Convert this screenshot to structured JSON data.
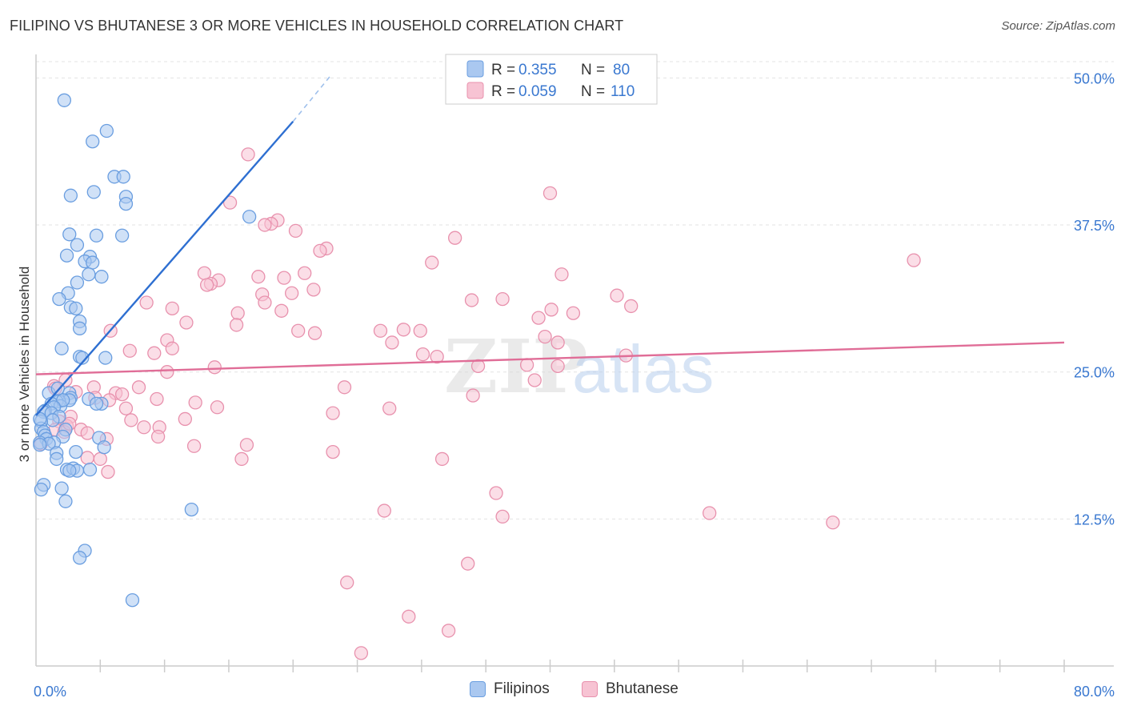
{
  "title": "FILIPINO VS BHUTANESE 3 OR MORE VEHICLES IN HOUSEHOLD CORRELATION CHART",
  "source": "Source: ZipAtlas.com",
  "watermark": {
    "zip": "ZIP",
    "atlas": "atlas"
  },
  "legend_top": [
    {
      "r_label": "R =",
      "r_value": "0.355",
      "n_label": "N =",
      "n_value": "80"
    },
    {
      "r_label": "R =",
      "r_value": "0.059",
      "n_label": "N =",
      "n_value": "110"
    }
  ],
  "chart_data": {
    "type": "scatter",
    "title": "FILIPINO VS BHUTANESE 3 OR MORE VEHICLES IN HOUSEHOLD CORRELATION CHART",
    "xlabel": "",
    "ylabel": "3 or more Vehicles in Household",
    "xlim": [
      0,
      80
    ],
    "ylim": [
      0,
      52
    ],
    "x_tick_labels": [
      "0.0%",
      "80.0%"
    ],
    "y_ticks": [
      12.5,
      25.0,
      37.5,
      50.0
    ],
    "y_tick_labels": [
      "12.5%",
      "25.0%",
      "37.5%",
      "50.0%"
    ],
    "grid": true,
    "legend_position": "top-center",
    "series": [
      {
        "name": "Filipinos",
        "color": "#6a9ee0",
        "fill": "#aac8f0",
        "line_color": "#2e6fd1",
        "r": 0.355,
        "n": 80,
        "trend": {
          "x0": 0,
          "y0": 21.3,
          "x1": 20,
          "y1": 46.3,
          "dash_x1": 23,
          "dash_y1": 50.3
        },
        "points": [
          [
            2.2,
            48.1
          ],
          [
            4.4,
            44.6
          ],
          [
            5.5,
            45.5
          ],
          [
            6.1,
            41.6
          ],
          [
            6.8,
            41.6
          ],
          [
            2.7,
            40.0
          ],
          [
            4.5,
            40.3
          ],
          [
            7.0,
            39.9
          ],
          [
            7.0,
            39.3
          ],
          [
            16.6,
            38.2
          ],
          [
            2.6,
            36.7
          ],
          [
            4.7,
            36.6
          ],
          [
            6.7,
            36.6
          ],
          [
            3.2,
            35.8
          ],
          [
            2.4,
            34.9
          ],
          [
            4.2,
            34.8
          ],
          [
            3.8,
            34.4
          ],
          [
            4.4,
            34.3
          ],
          [
            4.1,
            33.3
          ],
          [
            5.1,
            33.1
          ],
          [
            3.2,
            32.6
          ],
          [
            2.5,
            31.7
          ],
          [
            1.8,
            31.2
          ],
          [
            2.7,
            30.5
          ],
          [
            3.1,
            30.4
          ],
          [
            3.4,
            29.3
          ],
          [
            3.4,
            28.7
          ],
          [
            2.0,
            27.0
          ],
          [
            3.4,
            26.3
          ],
          [
            3.6,
            26.2
          ],
          [
            5.4,
            26.2
          ],
          [
            1.0,
            23.2
          ],
          [
            2.6,
            23.2
          ],
          [
            2.7,
            22.8
          ],
          [
            2.6,
            22.6
          ],
          [
            1.8,
            22.5
          ],
          [
            1.6,
            22.5
          ],
          [
            1.2,
            22.3
          ],
          [
            1.9,
            22.1
          ],
          [
            2.1,
            22.6
          ],
          [
            1.4,
            22.0
          ],
          [
            0.7,
            21.7
          ],
          [
            4.1,
            22.7
          ],
          [
            5.1,
            22.3
          ],
          [
            4.7,
            22.3
          ],
          [
            0.6,
            21.6
          ],
          [
            1.2,
            21.5
          ],
          [
            1.8,
            21.2
          ],
          [
            1.3,
            20.9
          ],
          [
            0.4,
            20.8
          ],
          [
            0.4,
            20.2
          ],
          [
            2.3,
            20.1
          ],
          [
            0.6,
            19.9
          ],
          [
            0.7,
            19.6
          ],
          [
            2.1,
            19.5
          ],
          [
            4.9,
            19.4
          ],
          [
            0.8,
            19.3
          ],
          [
            1.4,
            19.0
          ],
          [
            0.3,
            19.0
          ],
          [
            1.0,
            18.9
          ],
          [
            0.3,
            18.8
          ],
          [
            5.3,
            18.6
          ],
          [
            3.1,
            18.2
          ],
          [
            1.6,
            18.1
          ],
          [
            1.6,
            17.6
          ],
          [
            2.4,
            16.7
          ],
          [
            2.9,
            16.8
          ],
          [
            3.2,
            16.6
          ],
          [
            4.2,
            16.7
          ],
          [
            2.6,
            16.6
          ],
          [
            0.6,
            15.4
          ],
          [
            0.4,
            15.0
          ],
          [
            2.0,
            15.1
          ],
          [
            2.3,
            14.0
          ],
          [
            12.1,
            13.3
          ],
          [
            3.8,
            9.8
          ],
          [
            3.4,
            9.2
          ],
          [
            7.5,
            5.6
          ],
          [
            0.3,
            21.0
          ],
          [
            1.7,
            23.6
          ]
        ]
      },
      {
        "name": "Bhutanese",
        "color": "#e891ad",
        "fill": "#f7c3d3",
        "line_color": "#e06d97",
        "r": 0.059,
        "n": 110,
        "trend": {
          "x0": 0,
          "y0": 24.8,
          "x1": 80,
          "y1": 27.5
        },
        "points": [
          [
            16.5,
            43.5
          ],
          [
            40.0,
            40.2
          ],
          [
            15.1,
            39.4
          ],
          [
            18.8,
            37.9
          ],
          [
            18.3,
            37.6
          ],
          [
            17.8,
            37.5
          ],
          [
            20.2,
            37.0
          ],
          [
            32.6,
            36.4
          ],
          [
            22.6,
            35.5
          ],
          [
            22.1,
            35.3
          ],
          [
            68.3,
            34.5
          ],
          [
            30.8,
            34.3
          ],
          [
            13.1,
            33.4
          ],
          [
            20.9,
            33.4
          ],
          [
            17.3,
            33.1
          ],
          [
            19.3,
            33.0
          ],
          [
            14.2,
            32.8
          ],
          [
            13.6,
            32.5
          ],
          [
            13.3,
            32.4
          ],
          [
            40.9,
            33.3
          ],
          [
            21.6,
            32.0
          ],
          [
            19.9,
            31.7
          ],
          [
            17.6,
            31.6
          ],
          [
            36.3,
            31.2
          ],
          [
            33.9,
            31.1
          ],
          [
            45.2,
            31.5
          ],
          [
            8.6,
            30.9
          ],
          [
            17.8,
            30.9
          ],
          [
            46.3,
            30.6
          ],
          [
            10.6,
            30.4
          ],
          [
            40.1,
            30.3
          ],
          [
            19.1,
            30.2
          ],
          [
            15.7,
            30.0
          ],
          [
            41.8,
            30.0
          ],
          [
            39.1,
            29.6
          ],
          [
            11.7,
            29.2
          ],
          [
            15.6,
            29.0
          ],
          [
            20.4,
            28.5
          ],
          [
            21.7,
            28.3
          ],
          [
            26.8,
            28.5
          ],
          [
            28.6,
            28.6
          ],
          [
            29.9,
            28.5
          ],
          [
            5.8,
            28.5
          ],
          [
            39.6,
            28.0
          ],
          [
            10.2,
            27.7
          ],
          [
            27.7,
            27.5
          ],
          [
            40.6,
            27.5
          ],
          [
            10.6,
            27.0
          ],
          [
            7.3,
            26.8
          ],
          [
            9.2,
            26.6
          ],
          [
            30.1,
            26.5
          ],
          [
            31.2,
            26.3
          ],
          [
            45.9,
            26.4
          ],
          [
            13.9,
            25.4
          ],
          [
            34.4,
            25.5
          ],
          [
            38.2,
            25.6
          ],
          [
            40.6,
            25.5
          ],
          [
            10.2,
            25.0
          ],
          [
            2.3,
            24.3
          ],
          [
            38.8,
            24.3
          ],
          [
            1.4,
            23.8
          ],
          [
            4.5,
            23.7
          ],
          [
            8.0,
            23.7
          ],
          [
            24.0,
            23.7
          ],
          [
            1.5,
            23.6
          ],
          [
            3.1,
            23.3
          ],
          [
            6.2,
            23.2
          ],
          [
            6.7,
            23.1
          ],
          [
            34.0,
            23.0
          ],
          [
            4.6,
            22.8
          ],
          [
            5.7,
            22.6
          ],
          [
            9.4,
            22.7
          ],
          [
            12.4,
            22.4
          ],
          [
            14.1,
            22.0
          ],
          [
            7.0,
            21.9
          ],
          [
            27.5,
            21.9
          ],
          [
            23.1,
            21.5
          ],
          [
            2.7,
            21.2
          ],
          [
            11.6,
            21.0
          ],
          [
            7.4,
            20.9
          ],
          [
            1.8,
            20.8
          ],
          [
            2.4,
            20.4
          ],
          [
            8.4,
            20.3
          ],
          [
            9.6,
            20.3
          ],
          [
            3.5,
            20.1
          ],
          [
            1.5,
            20.1
          ],
          [
            2.2,
            19.9
          ],
          [
            4.0,
            19.8
          ],
          [
            9.5,
            19.5
          ],
          [
            5.5,
            19.3
          ],
          [
            12.3,
            18.7
          ],
          [
            16.4,
            18.8
          ],
          [
            0.4,
            18.9
          ],
          [
            23.1,
            18.2
          ],
          [
            5.0,
            17.6
          ],
          [
            4.0,
            17.7
          ],
          [
            16.0,
            17.6
          ],
          [
            31.6,
            17.6
          ],
          [
            5.6,
            16.5
          ],
          [
            35.8,
            14.7
          ],
          [
            36.3,
            12.7
          ],
          [
            27.1,
            13.2
          ],
          [
            52.4,
            13.0
          ],
          [
            62.0,
            12.2
          ],
          [
            33.6,
            8.7
          ],
          [
            24.2,
            7.1
          ],
          [
            29.0,
            4.2
          ],
          [
            32.1,
            3.0
          ],
          [
            25.3,
            1.1
          ],
          [
            2.6,
            20.6
          ]
        ]
      }
    ]
  }
}
